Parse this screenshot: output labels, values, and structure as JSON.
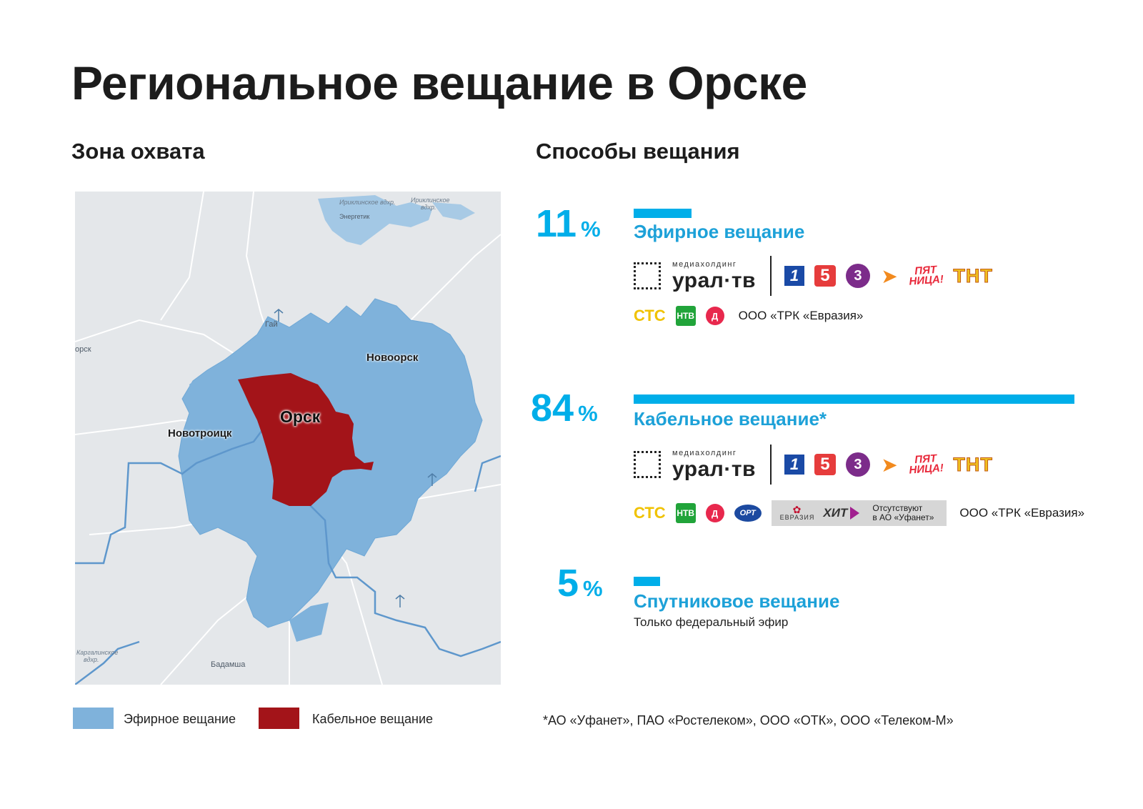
{
  "title": "Региональное вещание в Орске",
  "left_heading": "Зона охвата",
  "right_heading": "Способы вещания",
  "map": {
    "labels": {
      "orsk": "Орск",
      "novotroitsk": "Новотроицк",
      "novoorsk": "Новоорск",
      "gai": "Гай",
      "energetik": "Энергетик",
      "badamsha": "Бадамша",
      "badamsha_cut": "Бадамша",
      "west_cut": "орск",
      "iriklinskoe_1": "Ириклинское вдхр.",
      "iriklinskoe_2a": "Ириклинское",
      "iriklinskoe_2b": "вдхр.",
      "kargalinskoe_a": "Каргалинское",
      "kargalinskoe_b": "вдхр."
    },
    "colors": {
      "air": "#7fb2db",
      "cable": "#a31419",
      "background": "#e4e7ea",
      "roads": "#ffffff",
      "borders": "#6a9fd0"
    }
  },
  "legend": [
    {
      "label": "Эфирное вещание",
      "color": "#7fb2db"
    },
    {
      "label": "Кабельное вещание",
      "color": "#a31419"
    }
  ],
  "methods": [
    {
      "percent": "11",
      "percent_sign": "%",
      "share": 0.11,
      "title": "Эфирное вещание",
      "channels_row1": [
        "медиахолдинг урал·тв",
        "Первый канал",
        "Пятый канал",
        "ТВ3",
        "РЕН ТВ",
        "Пятница!",
        "ТНТ"
      ],
      "channels_row2": [
        "СТС",
        "НТВ",
        "Домашний"
      ],
      "company": "ООО «ТРК «Евразия»"
    },
    {
      "percent": "84",
      "percent_sign": "%",
      "share": 0.84,
      "title": "Кабельное вещание*",
      "channels_row1": [
        "медиахолдинг урал·тв",
        "Первый канал",
        "Пятый канал",
        "ТВ3",
        "РЕН ТВ",
        "Пятница!",
        "ТНТ"
      ],
      "channels_row2": [
        "СТС",
        "НТВ",
        "Домашний",
        "ОРТ"
      ],
      "absent_box": {
        "channels": [
          "ЕВРАЗИЯ",
          "ХИТ"
        ],
        "note_1": "Отсутствуют",
        "note_2": "в АО «Уфанет»"
      },
      "company": "ООО «ТРК «Евразия»"
    },
    {
      "percent": "5",
      "percent_sign": "%",
      "share": 0.05,
      "title": "Спутниковое вещание",
      "subtitle": "Только федеральный эфир"
    }
  ],
  "logos": {
    "ural_small": "медиахолдинг",
    "ural_big": "урал·тв",
    "ch1": "1",
    "ch5": "5",
    "tv3": "3",
    "ren": "РЕН",
    "pyat_1": "ПЯТ",
    "pyat_2": "НИЦА!",
    "tnt": "ТНТ",
    "sts": "СТС",
    "ntv": "НТВ",
    "dom": "Д",
    "ort": "ОРТ",
    "evrazia": "ЕВРАЗИЯ",
    "hit": "ХИТ"
  },
  "footnote": "*АО «Уфанет», ПАО «Ростелеком», ООО «ОТК», ООО «Телеком-М»"
}
